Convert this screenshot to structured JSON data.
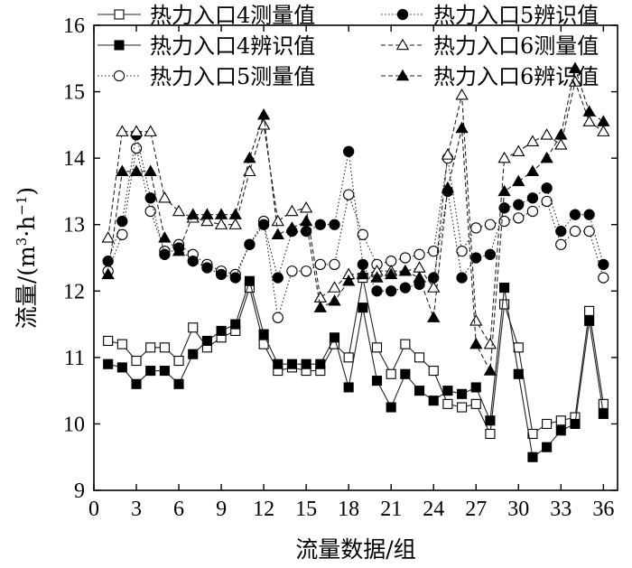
{
  "chart_data": {
    "type": "line",
    "title": "",
    "xlabel": "流量数据/组",
    "ylabel_main": "流量/(m",
    "ylabel_sup": "3",
    "ylabel_mid": "·h",
    "ylabel_sup2": "−1",
    "ylabel_end": ")",
    "xlim": [
      0,
      37
    ],
    "ylim": [
      9,
      16
    ],
    "xticks": [
      0,
      3,
      6,
      9,
      12,
      15,
      18,
      21,
      24,
      27,
      30,
      33,
      36
    ],
    "yticks": [
      9,
      10,
      11,
      12,
      13,
      14,
      15,
      16
    ],
    "grid": false,
    "legend_position": "top",
    "x": [
      1,
      2,
      3,
      4,
      5,
      6,
      7,
      8,
      9,
      10,
      11,
      12,
      13,
      14,
      15,
      16,
      17,
      18,
      19,
      20,
      21,
      22,
      23,
      24,
      25,
      26,
      27,
      28,
      29,
      30,
      31,
      32,
      33,
      34,
      35,
      36
    ],
    "series": [
      {
        "name": "热力入口4测量值",
        "marker": "square-open",
        "line": "solid",
        "values": [
          11.25,
          11.2,
          10.95,
          11.15,
          11.15,
          10.95,
          11.45,
          11.15,
          11.3,
          11.4,
          12.05,
          11.2,
          10.8,
          10.85,
          10.8,
          10.8,
          11.2,
          11.0,
          12.2,
          11.15,
          10.75,
          11.2,
          11.0,
          10.8,
          10.3,
          10.25,
          10.3,
          9.85,
          11.8,
          11.15,
          9.85,
          10.0,
          10.05,
          10.1,
          11.7,
          10.3
        ]
      },
      {
        "name": "热力入口4辨识值",
        "marker": "square-filled",
        "line": "solid",
        "values": [
          10.9,
          10.85,
          10.6,
          10.8,
          10.8,
          10.6,
          11.05,
          11.25,
          11.4,
          11.5,
          12.15,
          11.35,
          10.9,
          10.9,
          10.9,
          10.9,
          11.3,
          10.55,
          11.75,
          10.65,
          10.25,
          10.75,
          10.5,
          10.35,
          10.5,
          10.45,
          10.55,
          10.05,
          12.05,
          10.75,
          9.5,
          9.65,
          9.9,
          10.0,
          11.55,
          10.15
        ]
      },
      {
        "name": "热力入口5测量值",
        "marker": "circle-open",
        "line": "dotted",
        "values": [
          12.3,
          12.85,
          14.15,
          13.2,
          12.6,
          12.7,
          12.55,
          12.4,
          12.3,
          12.25,
          12.7,
          13.05,
          11.6,
          12.3,
          12.3,
          12.4,
          12.4,
          13.45,
          12.85,
          12.4,
          12.45,
          12.5,
          12.55,
          12.6,
          14.0,
          12.6,
          12.95,
          13.0,
          13.05,
          13.1,
          13.2,
          13.35,
          12.7,
          12.9,
          12.9,
          12.2
        ]
      },
      {
        "name": "热力入口5辨识值",
        "marker": "circle-filled",
        "line": "dotted",
        "values": [
          12.45,
          13.05,
          14.35,
          13.4,
          12.55,
          12.65,
          12.45,
          12.35,
          12.25,
          12.2,
          12.7,
          13.0,
          12.2,
          12.9,
          12.9,
          13.0,
          13.0,
          14.1,
          12.4,
          12.0,
          12.0,
          12.05,
          12.1,
          12.2,
          13.5,
          12.2,
          12.5,
          12.55,
          13.25,
          13.3,
          13.4,
          13.55,
          12.9,
          13.15,
          13.15,
          12.4
        ]
      },
      {
        "name": "热力入口6测量值",
        "marker": "triangle-open",
        "line": "dashed",
        "values": [
          12.8,
          14.4,
          14.4,
          14.4,
          13.4,
          13.2,
          13.1,
          13.05,
          13.0,
          13.0,
          13.8,
          14.5,
          13.05,
          13.2,
          13.25,
          11.9,
          12.05,
          12.25,
          12.25,
          12.3,
          12.3,
          12.3,
          12.35,
          12.05,
          14.05,
          14.95,
          11.55,
          11.2,
          14.0,
          14.1,
          14.25,
          14.35,
          14.2,
          15.15,
          14.55,
          14.4
        ]
      },
      {
        "name": "热力入口6辨识值",
        "marker": "triangle-filled",
        "line": "dashed",
        "values": [
          12.25,
          13.8,
          13.8,
          13.8,
          12.8,
          12.6,
          13.15,
          13.15,
          13.15,
          13.15,
          14.0,
          14.65,
          12.85,
          12.95,
          13.05,
          11.75,
          11.85,
          12.15,
          12.25,
          12.2,
          12.25,
          12.3,
          12.2,
          11.6,
          13.55,
          14.45,
          11.2,
          10.8,
          13.5,
          13.65,
          13.8,
          14.0,
          14.35,
          15.35,
          14.7,
          14.55
        ]
      }
    ]
  }
}
